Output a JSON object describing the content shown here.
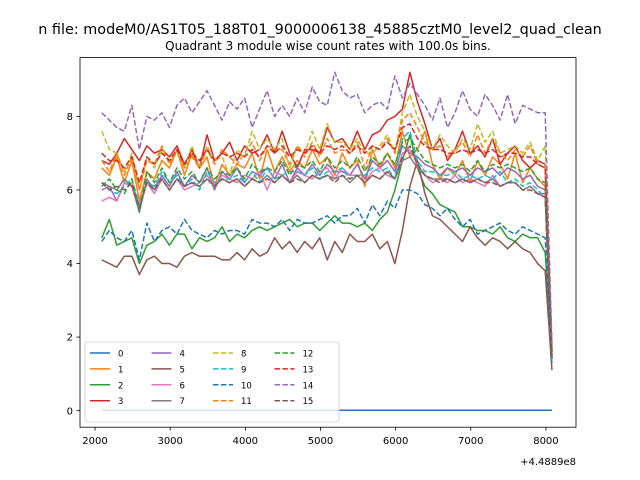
{
  "figure": {
    "suptitle": "n file: modeM0/AS1T05_188T01_9000006138_45885cztM0_level2_quad_clean",
    "offset_label": "+4.4889e8"
  },
  "chart_data": {
    "type": "line",
    "title": "Quadrant 3 module wise count rates with 100.0s bins.",
    "xlabel": "",
    "ylabel": "",
    "xlim": [
      1800,
      8400
    ],
    "ylim": [
      -0.45,
      9.6
    ],
    "x_ticks": [
      2000,
      3000,
      4000,
      5000,
      6000,
      7000,
      8000
    ],
    "y_ticks": [
      0,
      2,
      4,
      6,
      8
    ],
    "grid": false,
    "legend_position": "lower-left",
    "legend_columns": 4,
    "x": [
      2090,
      2190,
      2290,
      2390,
      2490,
      2590,
      2690,
      2790,
      2890,
      2990,
      3090,
      3190,
      3290,
      3390,
      3490,
      3590,
      3690,
      3790,
      3890,
      3990,
      4090,
      4190,
      4290,
      4390,
      4490,
      4590,
      4690,
      4790,
      4890,
      4990,
      5090,
      5190,
      5290,
      5390,
      5490,
      5590,
      5690,
      5790,
      5890,
      5990,
      6090,
      6190,
      6290,
      6390,
      6490,
      6590,
      6690,
      6790,
      6890,
      6990,
      7090,
      7190,
      7290,
      7390,
      7490,
      7590,
      7690,
      7790,
      7890,
      7990,
      8080
    ],
    "series": [
      {
        "name": "0",
        "color": "#1f77b4",
        "dash": "solid",
        "values": [
          0.01,
          0.01,
          0.01,
          0.01,
          0.01,
          0.01,
          0.01,
          0.01,
          0.01,
          0.01,
          0.01,
          0.01,
          0.01,
          0.01,
          0.01,
          0.01,
          0.01,
          0.01,
          0.01,
          0.01,
          0.01,
          0.01,
          0.01,
          0.01,
          0.01,
          0.01,
          0.01,
          0.01,
          0.01,
          0.01,
          0.01,
          0.01,
          0.01,
          0.01,
          0.01,
          0.01,
          0.01,
          0.01,
          0.01,
          0.01,
          0.01,
          0.01,
          0.01,
          0.01,
          0.01,
          0.01,
          0.01,
          0.01,
          0.01,
          0.01,
          0.01,
          0.01,
          0.01,
          0.01,
          0.01,
          0.01,
          0.01,
          0.01,
          0.01,
          0.01,
          0.01
        ]
      },
      {
        "name": "1",
        "color": "#ff7f0e",
        "dash": "solid",
        "values": [
          6.6,
          6.4,
          6.9,
          6.2,
          6.8,
          5.7,
          6.5,
          6.3,
          6.8,
          6.6,
          7.1,
          6.4,
          7.0,
          6.6,
          6.9,
          6.1,
          6.7,
          6.4,
          6.7,
          6.6,
          7.0,
          6.3,
          7.1,
          6.5,
          6.9,
          6.5,
          6.8,
          6.6,
          7.1,
          6.7,
          6.9,
          6.4,
          7.0,
          6.6,
          6.8,
          6.1,
          7.1,
          6.6,
          7.0,
          6.6,
          7.6,
          6.9,
          7.1,
          7.6,
          6.7,
          6.3,
          6.6,
          6.4,
          6.8,
          6.2,
          6.8,
          6.4,
          6.9,
          6.7,
          6.3,
          7.0,
          6.2,
          6.6,
          6.3,
          6.1,
          1.5
        ]
      },
      {
        "name": "2",
        "color": "#2ca02c",
        "dash": "solid",
        "values": [
          4.7,
          5.2,
          4.5,
          4.6,
          4.7,
          4.0,
          4.5,
          4.6,
          4.8,
          4.5,
          4.8,
          4.8,
          4.4,
          4.7,
          4.6,
          4.7,
          5.0,
          4.6,
          4.8,
          4.7,
          4.9,
          5.0,
          4.9,
          5.0,
          5.1,
          5.2,
          5.0,
          5.1,
          5.1,
          4.9,
          5.1,
          5.3,
          5.1,
          5.1,
          5.0,
          5.1,
          4.9,
          5.2,
          5.4,
          6.0,
          6.8,
          7.5,
          6.6,
          6.1,
          5.9,
          5.6,
          5.5,
          5.4,
          5.0,
          5.0,
          4.9,
          4.9,
          4.8,
          5.0,
          4.7,
          4.6,
          4.8,
          4.7,
          4.7,
          4.3,
          1.4
        ]
      },
      {
        "name": "3",
        "color": "#d62728",
        "dash": "solid",
        "values": [
          6.8,
          6.7,
          7.0,
          7.4,
          7.1,
          6.8,
          7.2,
          7.0,
          7.1,
          6.9,
          7.2,
          6.7,
          7.1,
          6.6,
          7.5,
          6.8,
          7.0,
          7.3,
          6.8,
          7.2,
          7.0,
          7.1,
          7.5,
          7.0,
          7.6,
          7.0,
          6.6,
          7.1,
          7.1,
          7.0,
          7.7,
          7.3,
          7.4,
          7.1,
          7.6,
          7.1,
          7.5,
          7.6,
          7.9,
          8.0,
          8.2,
          9.2,
          8.4,
          7.8,
          7.1,
          7.4,
          6.8,
          7.1,
          7.6,
          7.0,
          7.2,
          6.9,
          7.4,
          6.7,
          7.0,
          7.2,
          6.8,
          6.6,
          6.8,
          6.7,
          1.6
        ]
      },
      {
        "name": "4",
        "color": "#9467bd",
        "dash": "solid",
        "values": [
          6.0,
          6.1,
          5.7,
          6.2,
          6.1,
          5.4,
          6.3,
          6.0,
          6.4,
          6.1,
          6.5,
          6.1,
          6.4,
          6.2,
          6.6,
          6.0,
          6.5,
          6.3,
          6.6,
          6.2,
          6.5,
          6.4,
          6.6,
          6.3,
          6.7,
          6.2,
          6.6,
          6.4,
          6.7,
          6.4,
          6.7,
          6.5,
          6.5,
          6.4,
          6.7,
          6.3,
          6.8,
          6.6,
          6.8,
          6.5,
          7.2,
          7.0,
          6.9,
          6.7,
          6.6,
          6.4,
          6.6,
          6.5,
          6.6,
          6.4,
          6.6,
          6.5,
          6.6,
          6.4,
          6.6,
          6.5,
          6.3,
          6.4,
          6.1,
          6.0,
          1.4
        ]
      },
      {
        "name": "5",
        "color": "#8c564b",
        "dash": "solid",
        "values": [
          4.1,
          4.0,
          3.9,
          4.2,
          4.2,
          3.7,
          4.1,
          4.2,
          4.0,
          4.0,
          3.9,
          4.2,
          4.3,
          4.2,
          4.2,
          4.2,
          4.1,
          4.1,
          4.3,
          4.1,
          4.4,
          4.2,
          4.3,
          4.7,
          4.4,
          4.6,
          4.3,
          4.6,
          4.4,
          4.7,
          4.1,
          4.6,
          4.3,
          4.8,
          4.6,
          4.6,
          4.8,
          4.4,
          4.6,
          4.0,
          4.9,
          6.1,
          6.8,
          5.9,
          5.3,
          5.2,
          5.0,
          4.8,
          4.6,
          5.0,
          4.7,
          4.5,
          4.7,
          4.6,
          4.4,
          4.6,
          4.4,
          4.3,
          4.0,
          3.8,
          1.1
        ]
      },
      {
        "name": "6",
        "color": "#e377c2",
        "dash": "solid",
        "values": [
          5.7,
          5.8,
          5.7,
          6.2,
          6.1,
          5.6,
          6.2,
          5.9,
          6.3,
          6.0,
          6.3,
          6.0,
          6.1,
          6.2,
          6.4,
          6.1,
          6.4,
          6.3,
          6.2,
          6.4,
          6.3,
          6.5,
          6.0,
          6.5,
          6.4,
          6.2,
          6.5,
          6.4,
          6.3,
          6.5,
          6.6,
          6.3,
          6.6,
          6.4,
          6.4,
          6.2,
          6.5,
          6.6,
          6.4,
          6.3,
          7.0,
          7.1,
          6.7,
          6.4,
          6.2,
          6.3,
          6.2,
          6.4,
          6.2,
          6.3,
          6.2,
          6.1,
          6.4,
          6.1,
          6.2,
          6.2,
          6.0,
          6.1,
          5.9,
          5.8,
          1.4
        ]
      },
      {
        "name": "7",
        "color": "#7f7f7f",
        "dash": "solid",
        "values": [
          6.2,
          6.1,
          6.0,
          6.3,
          6.1,
          5.5,
          6.2,
          6.1,
          6.3,
          6.0,
          6.3,
          6.1,
          6.2,
          6.1,
          6.3,
          6.1,
          6.3,
          6.2,
          6.3,
          6.1,
          6.3,
          6.2,
          6.4,
          6.2,
          6.4,
          6.2,
          6.4,
          6.2,
          6.4,
          6.3,
          6.4,
          6.3,
          6.4,
          6.2,
          6.4,
          6.2,
          6.4,
          6.3,
          6.5,
          6.3,
          6.8,
          6.9,
          6.6,
          6.4,
          6.3,
          6.3,
          6.3,
          6.2,
          6.3,
          6.2,
          6.3,
          6.2,
          6.3,
          6.1,
          6.2,
          6.2,
          6.0,
          6.1,
          5.9,
          5.9,
          1.4
        ]
      },
      {
        "name": "8",
        "color": "#bcbd22",
        "dash": "dashed",
        "values": [
          7.6,
          7.1,
          7.0,
          6.5,
          7.0,
          6.0,
          6.9,
          6.6,
          7.1,
          6.8,
          7.0,
          6.6,
          7.2,
          6.6,
          7.2,
          6.8,
          6.9,
          6.4,
          7.1,
          6.9,
          7.6,
          7.1,
          7.4,
          7.1,
          7.4,
          6.6,
          7.2,
          7.0,
          7.6,
          7.1,
          7.8,
          7.3,
          7.3,
          7.1,
          7.4,
          7.0,
          7.0,
          7.2,
          7.5,
          7.0,
          8.1,
          8.6,
          8.0,
          7.6,
          7.1,
          7.5,
          7.2,
          7.0,
          7.4,
          7.1,
          7.8,
          7.3,
          7.6,
          7.0,
          7.1,
          7.2,
          7.0,
          7.3,
          6.8,
          7.2,
          1.6
        ]
      },
      {
        "name": "9",
        "color": "#17becf",
        "dash": "dashed",
        "values": [
          6.2,
          6.0,
          5.9,
          6.1,
          6.3,
          5.6,
          6.2,
          6.1,
          6.5,
          6.2,
          6.4,
          6.1,
          6.3,
          6.0,
          6.5,
          6.2,
          6.3,
          6.3,
          6.4,
          6.2,
          6.5,
          6.2,
          6.6,
          6.3,
          6.4,
          6.5,
          6.5,
          6.4,
          6.6,
          6.3,
          6.5,
          6.5,
          6.6,
          6.3,
          6.4,
          6.4,
          6.6,
          6.5,
          6.6,
          6.3,
          7.4,
          7.6,
          6.8,
          6.5,
          6.5,
          6.4,
          6.4,
          6.5,
          6.3,
          6.4,
          6.3,
          6.4,
          6.3,
          6.5,
          6.2,
          6.3,
          6.1,
          6.2,
          6.0,
          5.8,
          1.4
        ]
      },
      {
        "name": "10",
        "color": "#1f77b4",
        "dash": "dashed",
        "values": [
          4.6,
          4.9,
          4.7,
          4.6,
          4.9,
          4.1,
          5.1,
          4.6,
          4.9,
          5.0,
          4.8,
          5.2,
          4.9,
          4.8,
          4.7,
          4.9,
          4.8,
          4.9,
          4.9,
          4.8,
          5.2,
          5.1,
          5.1,
          5.0,
          5.2,
          4.9,
          5.2,
          5.1,
          5.1,
          5.2,
          5.3,
          5.1,
          5.3,
          5.3,
          5.5,
          5.1,
          5.6,
          5.3,
          5.7,
          5.5,
          6.0,
          6.0,
          5.9,
          5.6,
          5.5,
          5.3,
          5.5,
          5.2,
          5.0,
          5.2,
          4.8,
          4.9,
          5.0,
          5.1,
          4.9,
          4.8,
          5.0,
          4.9,
          4.8,
          4.7,
          1.3
        ]
      },
      {
        "name": "11",
        "color": "#ff7f0e",
        "dash": "dashed",
        "values": [
          6.8,
          6.5,
          7.0,
          6.4,
          6.9,
          6.0,
          6.8,
          6.7,
          7.2,
          6.7,
          7.1,
          6.6,
          6.9,
          6.6,
          7.1,
          6.7,
          7.1,
          6.9,
          6.7,
          7.0,
          7.3,
          6.8,
          7.2,
          7.1,
          7.1,
          6.7,
          7.2,
          6.9,
          7.3,
          6.9,
          7.4,
          7.0,
          7.1,
          7.0,
          7.3,
          6.6,
          7.2,
          7.1,
          7.4,
          7.0,
          7.9,
          8.1,
          7.7,
          7.3,
          7.1,
          7.2,
          6.9,
          7.1,
          7.3,
          6.9,
          7.5,
          7.0,
          7.4,
          7.0,
          6.8,
          7.1,
          6.9,
          7.2,
          6.7,
          6.6,
          1.6
        ]
      },
      {
        "name": "12",
        "color": "#2ca02c",
        "dash": "dashed",
        "values": [
          6.1,
          6.3,
          6.0,
          5.9,
          6.3,
          5.4,
          6.5,
          6.2,
          6.6,
          6.2,
          6.6,
          6.3,
          6.5,
          6.2,
          6.6,
          6.3,
          6.5,
          6.4,
          6.6,
          6.3,
          6.7,
          6.5,
          6.6,
          6.5,
          6.8,
          6.4,
          6.7,
          6.6,
          6.8,
          6.5,
          6.9,
          6.6,
          6.8,
          6.6,
          6.9,
          6.5,
          6.9,
          6.7,
          7.0,
          6.7,
          7.3,
          7.4,
          7.1,
          6.8,
          6.7,
          6.6,
          6.7,
          6.6,
          6.7,
          6.5,
          6.8,
          6.5,
          6.7,
          6.6,
          6.7,
          6.6,
          6.5,
          6.6,
          6.3,
          6.2,
          1.5
        ]
      },
      {
        "name": "13",
        "color": "#d62728",
        "dash": "dashed",
        "values": [
          7.0,
          6.8,
          6.8,
          6.6,
          6.9,
          6.2,
          6.9,
          6.7,
          7.0,
          6.8,
          7.1,
          6.7,
          7.0,
          6.8,
          7.1,
          6.8,
          7.0,
          6.9,
          7.0,
          6.9,
          7.1,
          6.9,
          7.2,
          7.0,
          7.2,
          6.9,
          7.1,
          7.0,
          7.2,
          7.0,
          7.2,
          7.1,
          7.2,
          7.0,
          7.2,
          7.0,
          7.2,
          7.1,
          7.3,
          7.1,
          7.7,
          7.8,
          7.4,
          7.2,
          7.1,
          7.1,
          7.0,
          7.0,
          7.1,
          7.0,
          7.1,
          7.0,
          7.1,
          6.9,
          7.0,
          7.0,
          6.9,
          6.9,
          6.7,
          6.6,
          1.6
        ]
      },
      {
        "name": "14",
        "color": "#9467bd",
        "dash": "dashed",
        "values": [
          8.1,
          7.9,
          7.7,
          7.6,
          8.3,
          7.1,
          8.0,
          7.9,
          8.1,
          7.7,
          8.3,
          8.5,
          8.1,
          8.4,
          8.7,
          8.3,
          7.9,
          8.4,
          8.2,
          8.5,
          7.7,
          8.2,
          8.7,
          8.0,
          8.3,
          8.0,
          8.5,
          8.1,
          8.8,
          8.4,
          8.3,
          9.2,
          8.7,
          8.5,
          8.6,
          8.1,
          8.3,
          8.4,
          8.2,
          9.1,
          8.5,
          8.9,
          8.6,
          8.3,
          7.9,
          8.5,
          7.7,
          8.1,
          8.7,
          8.2,
          8.0,
          8.6,
          8.3,
          7.9,
          8.6,
          7.8,
          8.3,
          8.2,
          8.1,
          8.1,
          1.8
        ]
      },
      {
        "name": "15",
        "color": "#8c564b",
        "dash": "dashed",
        "values": [
          6.2,
          6.0,
          6.1,
          6.0,
          6.2,
          5.5,
          6.2,
          6.0,
          6.3,
          6.0,
          6.3,
          6.1,
          6.2,
          6.1,
          6.3,
          6.1,
          6.3,
          6.2,
          6.3,
          6.1,
          6.3,
          6.2,
          6.3,
          6.2,
          6.4,
          6.2,
          6.3,
          6.2,
          6.4,
          6.3,
          6.4,
          6.2,
          6.4,
          6.3,
          6.4,
          6.2,
          6.4,
          6.3,
          6.5,
          6.3,
          6.9,
          7.2,
          6.7,
          6.4,
          6.3,
          6.2,
          6.3,
          6.2,
          6.3,
          6.2,
          6.3,
          6.2,
          6.2,
          6.1,
          6.2,
          6.2,
          6.0,
          6.0,
          5.9,
          5.8,
          1.4
        ]
      }
    ]
  }
}
